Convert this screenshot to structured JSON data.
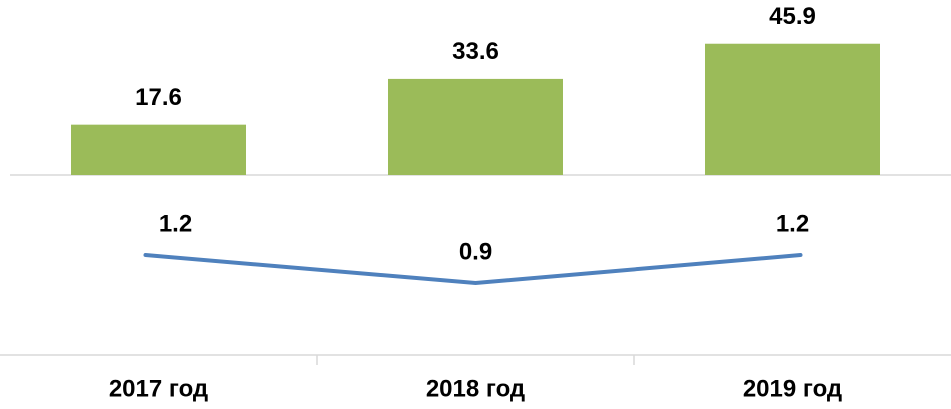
{
  "chart_data": {
    "type": "combo",
    "categories": [
      "2017 год",
      "2018 год",
      "2019 год"
    ],
    "series": [
      {
        "type": "bar",
        "color": "#9bbb59",
        "values": [
          17.6,
          33.6,
          45.9
        ]
      },
      {
        "type": "line",
        "color": "#4f81bd",
        "axis": "y2",
        "values": [
          1.2,
          0.9,
          1.2
        ]
      }
    ],
    "ylim": [
      0,
      60
    ],
    "y2lim": [
      0,
      2
    ]
  }
}
